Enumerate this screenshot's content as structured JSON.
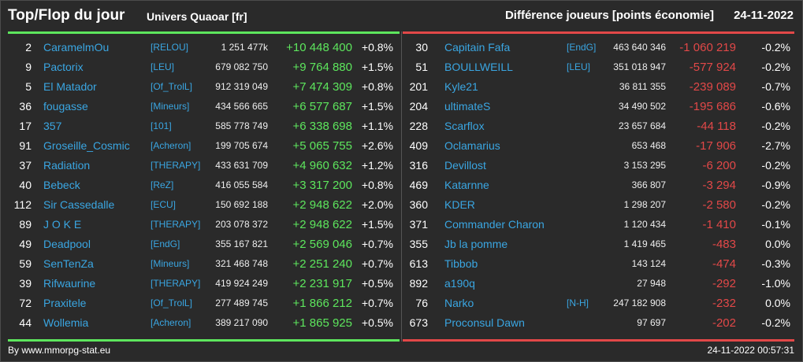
{
  "header": {
    "title": "Top/Flop du jour",
    "subtitle": "Univers Quaoar [fr]",
    "metric": "Différence joueurs [points économie]",
    "date": "24-11-2022"
  },
  "top": [
    {
      "rank": "2",
      "name": "CaramelmOu",
      "alliance": "[RELOU]",
      "points": "1 251 477k",
      "diff": "+10 448 400",
      "pct": "+0.8%"
    },
    {
      "rank": "9",
      "name": "Pactorix",
      "alliance": "[LEU]",
      "points": "679 082 750",
      "diff": "+9 764 880",
      "pct": "+1.5%"
    },
    {
      "rank": "5",
      "name": "El Matador",
      "alliance": "[Of_TrolL]",
      "points": "912 319 049",
      "diff": "+7 474 309",
      "pct": "+0.8%"
    },
    {
      "rank": "36",
      "name": "fougasse",
      "alliance": "[Mineurs]",
      "points": "434 566 665",
      "diff": "+6 577 687",
      "pct": "+1.5%"
    },
    {
      "rank": "17",
      "name": "357",
      "alliance": "[101]",
      "points": "585 778 749",
      "diff": "+6 338 698",
      "pct": "+1.1%"
    },
    {
      "rank": "91",
      "name": "Groseille_Cosmic",
      "alliance": "[Acheron]",
      "points": "199 705 674",
      "diff": "+5 065 755",
      "pct": "+2.6%"
    },
    {
      "rank": "37",
      "name": "Radiation",
      "alliance": "[THERAPY]",
      "points": "433 631 709",
      "diff": "+4 960 632",
      "pct": "+1.2%"
    },
    {
      "rank": "40",
      "name": "Bebeck",
      "alliance": "[ReZ]",
      "points": "416 055 584",
      "diff": "+3 317 200",
      "pct": "+0.8%"
    },
    {
      "rank": "112",
      "name": "Sir Cassedalle",
      "alliance": "[ECU]",
      "points": "150 692 188",
      "diff": "+2 948 622",
      "pct": "+2.0%"
    },
    {
      "rank": "89",
      "name": "J O K E",
      "alliance": "[THERAPY]",
      "points": "203 078 372",
      "diff": "+2 948 622",
      "pct": "+1.5%"
    },
    {
      "rank": "49",
      "name": "Deadpool",
      "alliance": "[EndG]",
      "points": "355 167 821",
      "diff": "+2 569 046",
      "pct": "+0.7%"
    },
    {
      "rank": "59",
      "name": "SenTenZa",
      "alliance": "[Mineurs]",
      "points": "321 468 748",
      "diff": "+2 251 240",
      "pct": "+0.7%"
    },
    {
      "rank": "39",
      "name": "Rifwaurine",
      "alliance": "[THERAPY]",
      "points": "419 924 249",
      "diff": "+2 231 917",
      "pct": "+0.5%"
    },
    {
      "rank": "72",
      "name": "Praxitele",
      "alliance": "[Of_TrolL]",
      "points": "277 489 745",
      "diff": "+1 866 212",
      "pct": "+0.7%"
    },
    {
      "rank": "44",
      "name": "Wollemia",
      "alliance": "[Acheron]",
      "points": "389 217 090",
      "diff": "+1 865 925",
      "pct": "+0.5%"
    }
  ],
  "flop": [
    {
      "rank": "30",
      "name": "Capitain Fafa",
      "alliance": "[EndG]",
      "points": "463 640 346",
      "diff": "-1 060 219",
      "pct": "-0.2%"
    },
    {
      "rank": "51",
      "name": "BOULLWEILL",
      "alliance": "[LEU]",
      "points": "351 018 947",
      "diff": "-577 924",
      "pct": "-0.2%"
    },
    {
      "rank": "201",
      "name": "Kyle21",
      "points": "36 811 355",
      "diff": "-239 089",
      "pct": "-0.7%"
    },
    {
      "rank": "204",
      "name": "ultimateS",
      "points": "34 490 502",
      "diff": "-195 686",
      "pct": "-0.6%"
    },
    {
      "rank": "228",
      "name": "Scarflox",
      "points": "23 657 684",
      "diff": "-44 118",
      "pct": "-0.2%"
    },
    {
      "rank": "409",
      "name": "Oclamarius",
      "points": "653 468",
      "diff": "-17 906",
      "pct": "-2.7%"
    },
    {
      "rank": "316",
      "name": "Devillost",
      "points": "3 153 295",
      "diff": "-6 200",
      "pct": "-0.2%"
    },
    {
      "rank": "469",
      "name": "Katarnne",
      "points": "366 807",
      "diff": "-3 294",
      "pct": "-0.9%"
    },
    {
      "rank": "360",
      "name": "KDER",
      "points": "1 298 207",
      "diff": "-2 580",
      "pct": "-0.2%"
    },
    {
      "rank": "371",
      "name": "Commander Charon",
      "points": "1 120 434",
      "diff": "-1 410",
      "pct": "-0.1%"
    },
    {
      "rank": "355",
      "name": "Jb la pomme",
      "points": "1 419 465",
      "diff": "-483",
      "pct": "0.0%"
    },
    {
      "rank": "613",
      "name": "Tibbob",
      "points": "143 124",
      "diff": "-474",
      "pct": "-0.3%"
    },
    {
      "rank": "892",
      "name": "a190q",
      "points": "27 948",
      "diff": "-292",
      "pct": "-1.0%"
    },
    {
      "rank": "76",
      "name": "Narko",
      "alliance": "[N-H]",
      "points": "247 182 908",
      "diff": "-232",
      "pct": "0.0%"
    },
    {
      "rank": "673",
      "name": "Proconsul Dawn",
      "points": "97 697",
      "diff": "-202",
      "pct": "-0.2%"
    }
  ],
  "footer": {
    "source": "By www.mmorpg-stat.eu",
    "timestamp": "24-11-2022 00:57:31"
  },
  "colors": {
    "background": "#2a2a2a",
    "text": "#ffffff",
    "player_blue": "#3aa6e2",
    "top_green": "#5de65d",
    "flop_red": "#e24848"
  }
}
